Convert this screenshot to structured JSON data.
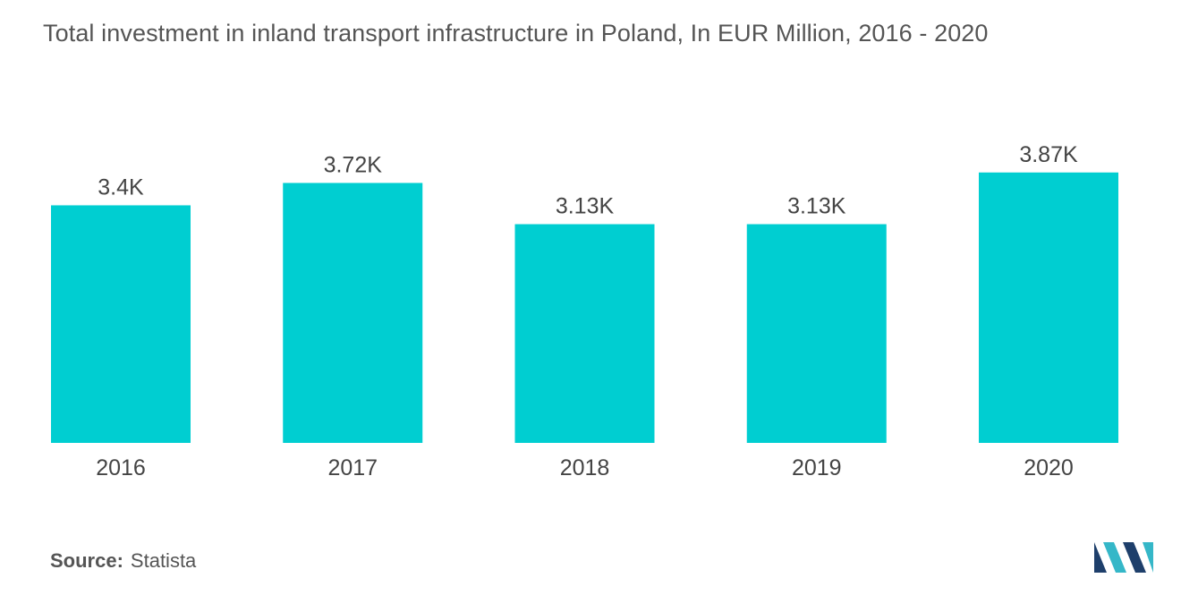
{
  "title": "Total investment in inland transport infrastructure in Poland, In EUR Million, 2016 - 2020",
  "source": {
    "label": "Source:",
    "value": "Statista"
  },
  "colors": {
    "bar": "#00CED1",
    "logo_dark": "#1e3f6b",
    "logo_light": "#35b7c8"
  },
  "chart_data": {
    "type": "bar",
    "categories": [
      "2016",
      "2017",
      "2018",
      "2019",
      "2020"
    ],
    "values": [
      3400,
      3720,
      3130,
      3130,
      3870
    ],
    "data_labels": [
      "3.4K",
      "3.72K",
      "3.13K",
      "3.13K",
      "3.87K"
    ],
    "title": "Total investment in inland transport infrastructure in Poland, In EUR Million, 2016 - 2020",
    "xlabel": "",
    "ylabel": "",
    "ylim": [
      0,
      4400
    ],
    "grid": false,
    "legend": "none"
  }
}
